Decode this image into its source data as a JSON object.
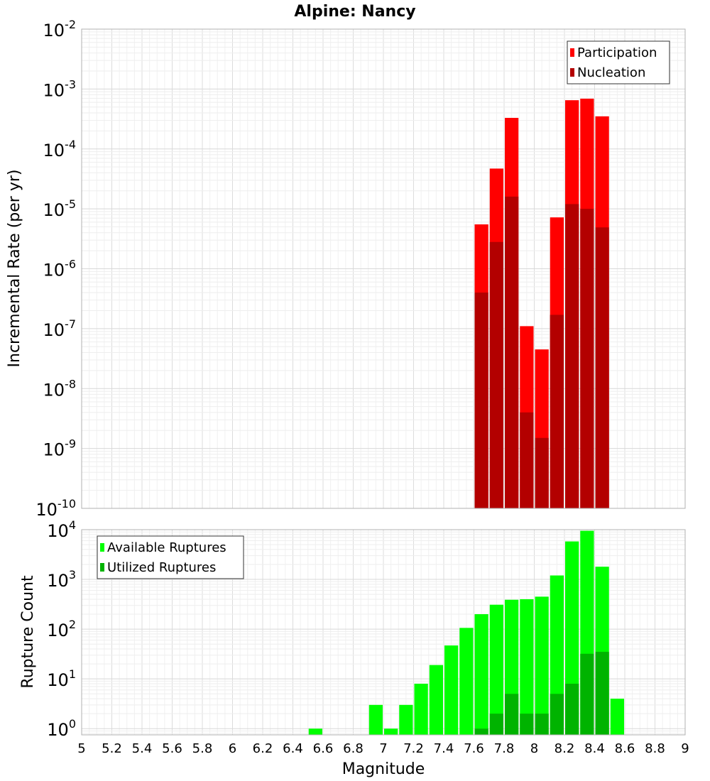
{
  "chart_data": [
    {
      "type": "bar",
      "title": "Alpine: Nancy",
      "ylabel": "Incremental Rate (per yr)",
      "xlabel": "",
      "xlim": [
        5,
        9
      ],
      "ylim": [
        1e-10,
        0.01
      ],
      "yscale": "log",
      "grid": true,
      "legend_position": "top-right",
      "x": [
        7.65,
        7.75,
        7.85,
        7.95,
        8.05,
        8.15,
        8.25,
        8.35,
        8.45
      ],
      "series": [
        {
          "name": "Participation",
          "color": "#ff0000",
          "values": [
            5.5e-06,
            4.7e-05,
            0.00033,
            1.1e-07,
            4.5e-08,
            7.2e-06,
            0.00065,
            0.00069,
            0.00035
          ]
        },
        {
          "name": "Nucleation",
          "color": "#b30000",
          "values": [
            4e-07,
            2.8e-06,
            1.6e-05,
            4e-09,
            1.5e-09,
            1.7e-07,
            1.2e-05,
            1e-05,
            4.9e-06
          ]
        }
      ],
      "y_ticks": [
        {
          "exp": "-2"
        },
        {
          "exp": "-3"
        },
        {
          "exp": "-4"
        },
        {
          "exp": "-5"
        },
        {
          "exp": "-6"
        },
        {
          "exp": "-7"
        },
        {
          "exp": "-8"
        },
        {
          "exp": "-9"
        },
        {
          "exp": "-10"
        }
      ]
    },
    {
      "type": "bar",
      "title": "",
      "ylabel": "Rupture Count",
      "xlabel": "Magnitude",
      "xlim": [
        5,
        9
      ],
      "ylim": [
        0.75,
        10000
      ],
      "yscale": "log",
      "grid": true,
      "legend_position": "top-left",
      "x": [
        6.55,
        6.95,
        7.05,
        7.15,
        7.25,
        7.35,
        7.45,
        7.55,
        7.65,
        7.75,
        7.85,
        7.95,
        8.05,
        8.15,
        8.25,
        8.35,
        8.45,
        8.55
      ],
      "series": [
        {
          "name": "Available Ruptures",
          "color": "#00ff00",
          "values": [
            1,
            3,
            1,
            3,
            8,
            19,
            47,
            106,
            200,
            310,
            390,
            400,
            450,
            1200,
            5800,
            9500,
            1800,
            4
          ]
        },
        {
          "name": "Utilized Ruptures",
          "color": "#00b300",
          "values": [
            null,
            null,
            null,
            null,
            null,
            null,
            null,
            null,
            1,
            2,
            5,
            2,
            2,
            5,
            8,
            32,
            35,
            null
          ]
        }
      ],
      "y_ticks": [
        {
          "exp": "4"
        },
        {
          "exp": "3"
        },
        {
          "exp": "2"
        },
        {
          "exp": "1"
        },
        {
          "exp": "0"
        }
      ],
      "x_ticks": [
        "5",
        "5.2",
        "5.4",
        "5.6",
        "5.8",
        "6",
        "6.2",
        "6.4",
        "6.6",
        "6.8",
        "7",
        "7.2",
        "7.4",
        "7.6",
        "7.8",
        "8",
        "8.2",
        "8.4",
        "8.6",
        "8.8",
        "9"
      ]
    }
  ]
}
